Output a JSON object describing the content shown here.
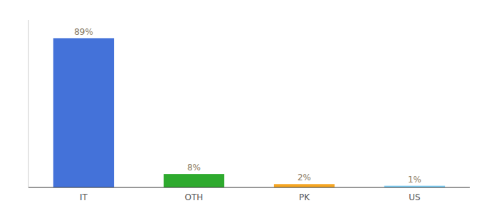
{
  "chart_data": {
    "type": "bar",
    "categories": [
      "IT",
      "OTH",
      "PK",
      "US"
    ],
    "values": [
      89,
      8,
      2,
      1
    ],
    "value_labels": [
      "89%",
      "8%",
      "2%",
      "1%"
    ],
    "colors": [
      "#4472d9",
      "#2eaa2e",
      "#f5a623",
      "#7ecef4"
    ],
    "ylim": [
      0,
      100
    ],
    "data_labels": true,
    "tick_labels": "x",
    "grid": false
  }
}
